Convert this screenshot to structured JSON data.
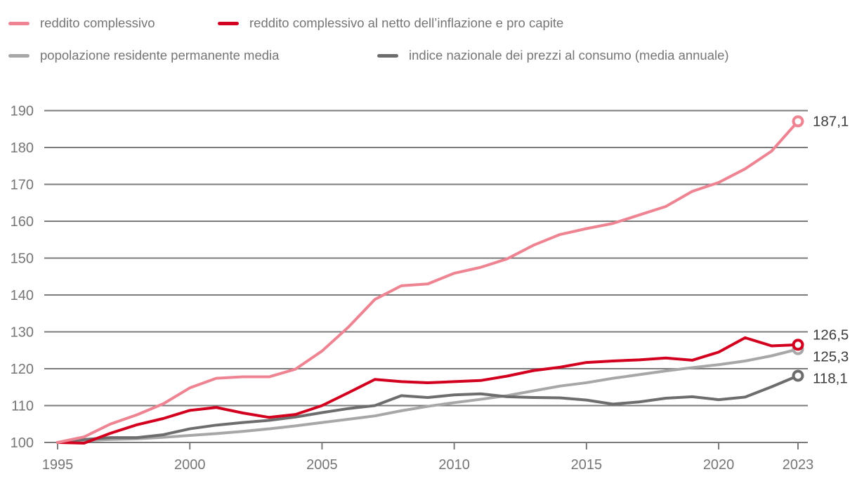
{
  "legend": {
    "items": [
      {
        "id": "reddito-complessivo",
        "label": "reddito complessivo",
        "color": "#ee8392"
      },
      {
        "id": "reddito-netto-inflazione-pro-capite",
        "label": "reddito complessivo al netto dell’inflazione e pro capite",
        "color": "#d2001e"
      },
      {
        "id": "popolazione-residente",
        "label": "popolazione residente permanente media",
        "color": "#a7a7a7"
      },
      {
        "id": "indice-prezzi-consumo",
        "label": "indice nazionale dei prezzi al consumo (media annuale)",
        "color": "#6d6d6d"
      }
    ]
  },
  "chart_data": {
    "type": "line",
    "x": [
      1995,
      1996,
      1997,
      1998,
      1999,
      2000,
      2001,
      2002,
      2003,
      2004,
      2005,
      2006,
      2007,
      2008,
      2009,
      2010,
      2011,
      2012,
      2013,
      2014,
      2015,
      2016,
      2017,
      2018,
      2019,
      2020,
      2021,
      2022,
      2023
    ],
    "series": [
      {
        "name": "reddito complessivo",
        "color": "#ee8392",
        "end_label": "187,1",
        "values": [
          100,
          101.5,
          105,
          107.5,
          110.5,
          114.8,
          117.4,
          117.8,
          117.8,
          119.9,
          124.8,
          131.3,
          138.8,
          142.5,
          143,
          145.9,
          147.5,
          149.8,
          153.5,
          156.4,
          158,
          159.4,
          161.7,
          164,
          168.1,
          170.5,
          174.2,
          179,
          187.1
        ]
      },
      {
        "name": "reddito complessivo al netto dell’inflazione e pro capite",
        "color": "#d2001e",
        "end_label": "126,5",
        "values": [
          100,
          99.8,
          102.5,
          104.8,
          106.5,
          108.7,
          109.5,
          108,
          106.8,
          107.6,
          110,
          113.5,
          117.1,
          116.5,
          116.2,
          116.5,
          116.8,
          118,
          119.5,
          120.4,
          121.7,
          122.1,
          122.4,
          122.9,
          122.3,
          124.5,
          128.4,
          126.2,
          126.5
        ]
      },
      {
        "name": "popolazione residente permanente media",
        "color": "#a7a7a7",
        "end_label": "125,3",
        "values": [
          100,
          100.5,
          100.8,
          101,
          101.4,
          101.9,
          102.4,
          103,
          103.7,
          104.5,
          105.4,
          106.3,
          107.2,
          108.6,
          109.8,
          110.8,
          111.7,
          112.7,
          114,
          115.3,
          116.2,
          117.4,
          118.4,
          119.4,
          120.3,
          121.1,
          122.1,
          123.5,
          125.3
        ]
      },
      {
        "name": "indice nazionale dei prezzi al consumo (media annuale)",
        "color": "#6d6d6d",
        "end_label": "118,1",
        "values": [
          100,
          100.8,
          101.3,
          101.3,
          102.1,
          103.7,
          104.7,
          105.4,
          106,
          106.9,
          108.1,
          109.2,
          110,
          112.7,
          112.2,
          112.9,
          113.2,
          112.4,
          112.2,
          112.1,
          111.5,
          110.4,
          111,
          112,
          112.4,
          111.6,
          112.3,
          115.1,
          118.1
        ]
      }
    ],
    "ylim": [
      100,
      190
    ],
    "yticks": [
      100,
      110,
      120,
      130,
      140,
      150,
      160,
      170,
      180,
      190
    ],
    "xticks": [
      1995,
      2000,
      2005,
      2010,
      2015,
      2020,
      2023
    ],
    "xlabel": "",
    "ylabel": "",
    "grid": "horizontal",
    "legend_position": "top",
    "colors": {
      "grid": "#7b7b7b",
      "axis_text": "#757575",
      "value_label": "#3d3d3d",
      "background": "#ffffff"
    }
  }
}
